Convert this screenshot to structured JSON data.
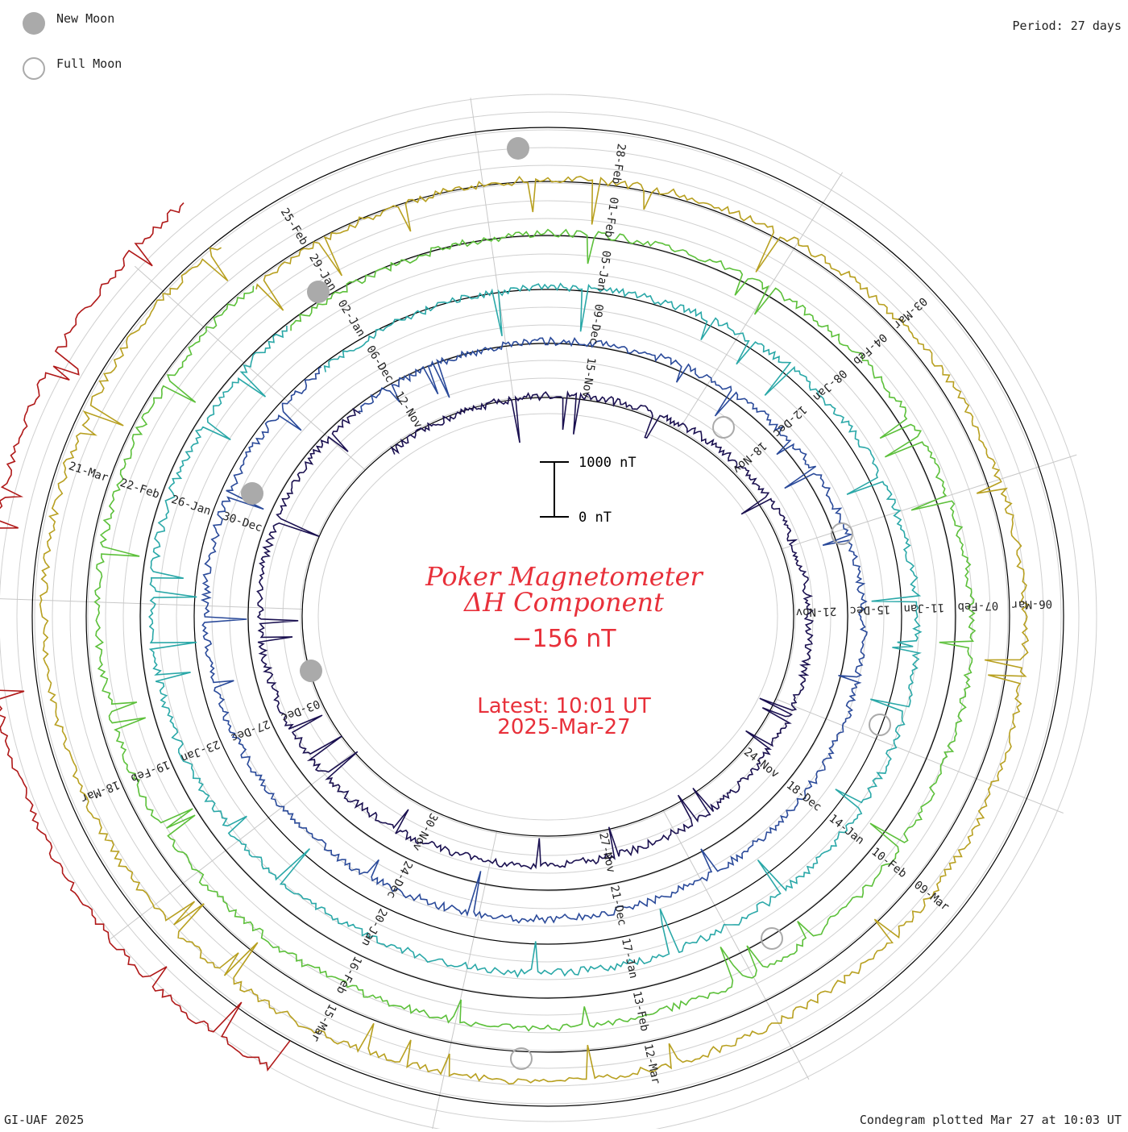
{
  "legend": {
    "new_moon": "New Moon",
    "full_moon": "Full Moon"
  },
  "period_label": "Period: 27 days",
  "footer_left": "GI-UAF 2025",
  "footer_right": "Condegram plotted Mar 27 at 10:03 UT",
  "title_line1": "Poker Magnetometer",
  "title_line2": "ΔH Component",
  "current_value": "−156 nT",
  "latest_line1": "Latest: 10:01 UT",
  "latest_line2": "2025-Mar-27",
  "scale": {
    "top_label": "1000 nT",
    "bottom_label": "0 nT"
  },
  "chart_data": {
    "type": "line",
    "subtype": "condegram spiral",
    "period_days": 27,
    "title": "Poker Magnetometer ΔH Component",
    "scale_nT": [
      0,
      1000
    ],
    "rotations": [
      {
        "color": "#1a1050",
        "dates": [
          "12-Nov",
          "15-Nov",
          "18-Nov",
          "21-Nov",
          "24-Nov",
          "27-Nov",
          "30-Nov",
          "03-Dec"
        ]
      },
      {
        "color": "#2a4a9a",
        "dates": [
          "06-Dec",
          "09-Dec",
          "12-Dec",
          "15-Dec",
          "18-Dec",
          "21-Dec",
          "24-Dec",
          "27-Dec",
          "30-Dec"
        ]
      },
      {
        "color": "#2aa8a8",
        "dates": [
          "02-Jan",
          "05-Jan",
          "08-Jan",
          "11-Jan",
          "14-Jan",
          "17-Jan",
          "20-Jan",
          "23-Jan",
          "26-Jan"
        ]
      },
      {
        "color": "#5cc03a",
        "dates": [
          "29-Jan",
          "01-Feb",
          "04-Feb",
          "07-Feb",
          "10-Feb",
          "13-Feb",
          "16-Feb",
          "19-Feb",
          "22-Feb"
        ]
      },
      {
        "color": "#b8a020",
        "dates": [
          "25-Feb",
          "28-Feb",
          "03-Mar",
          "06-Mar",
          "09-Mar",
          "12-Mar",
          "15-Mar",
          "18-Mar",
          "21-Mar"
        ]
      },
      {
        "color": "#b01818",
        "dates": []
      }
    ],
    "new_moons": [
      "29-Nov",
      "30-Dec",
      "29-Jan",
      "28-Feb"
    ],
    "full_moons": [
      "15-Nov",
      "15-Dec",
      "13-Jan",
      "12-Feb",
      "14-Mar"
    ]
  }
}
